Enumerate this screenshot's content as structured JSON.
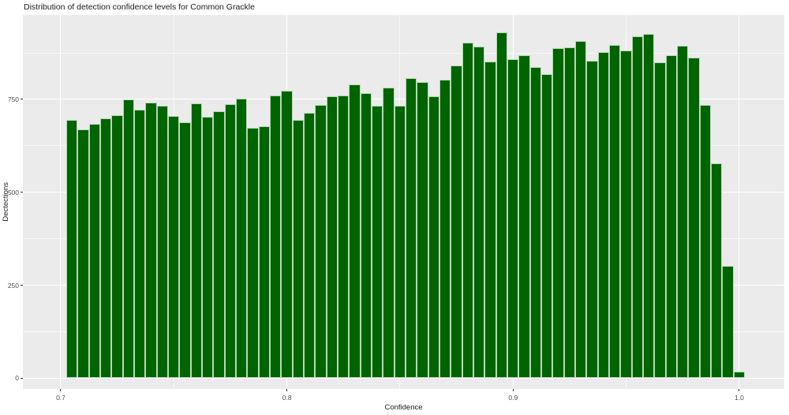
{
  "title": "Distribution of detection confidence levels for Common Grackle",
  "chart_data": {
    "type": "bar",
    "subtype": "histogram",
    "title": "Distribution of detection confidence levels for Common Grackle",
    "xlabel": "Confidence",
    "ylabel": "Dectections",
    "legend": "none",
    "grid": "on",
    "panel_bg": "#ebebeb",
    "grid_color": "#ffffff",
    "bar_color": "#006400",
    "bar_border_color": "#b9d7b9",
    "tick_label_color": "#4d4d4d",
    "bin_start": 0.7025,
    "bin_width": 0.005,
    "counts": [
      694,
      669,
      684,
      698,
      707,
      749,
      722,
      741,
      733,
      706,
      689,
      739,
      703,
      719,
      737,
      753,
      674,
      678,
      760,
      774,
      695,
      714,
      734,
      759,
      761,
      791,
      766,
      733,
      782,
      732,
      807,
      797,
      759,
      802,
      841,
      903,
      892,
      852,
      930,
      859,
      869,
      837,
      818,
      887,
      889,
      907,
      853,
      877,
      896,
      881,
      920,
      927,
      850,
      869,
      895,
      863,
      735,
      577,
      302,
      18
    ],
    "x_ticks": [
      {
        "v": 0.7,
        "label": "0.7"
      },
      {
        "v": 0.8,
        "label": "0.8"
      },
      {
        "v": 0.9,
        "label": "0.9"
      },
      {
        "v": 1.0,
        "label": "1.0"
      }
    ],
    "y_ticks": [
      {
        "v": 0,
        "label": "0"
      },
      {
        "v": 250,
        "label": "250"
      },
      {
        "v": 500,
        "label": "500"
      },
      {
        "v": 750,
        "label": "750"
      }
    ],
    "x_minor_ticks": [
      0.75,
      0.85,
      0.95
    ],
    "y_minor_ticks": [
      125,
      375,
      625,
      875
    ],
    "xlim": [
      0.68326,
      1.01989
    ],
    "ylim": [
      -29,
      977
    ]
  }
}
